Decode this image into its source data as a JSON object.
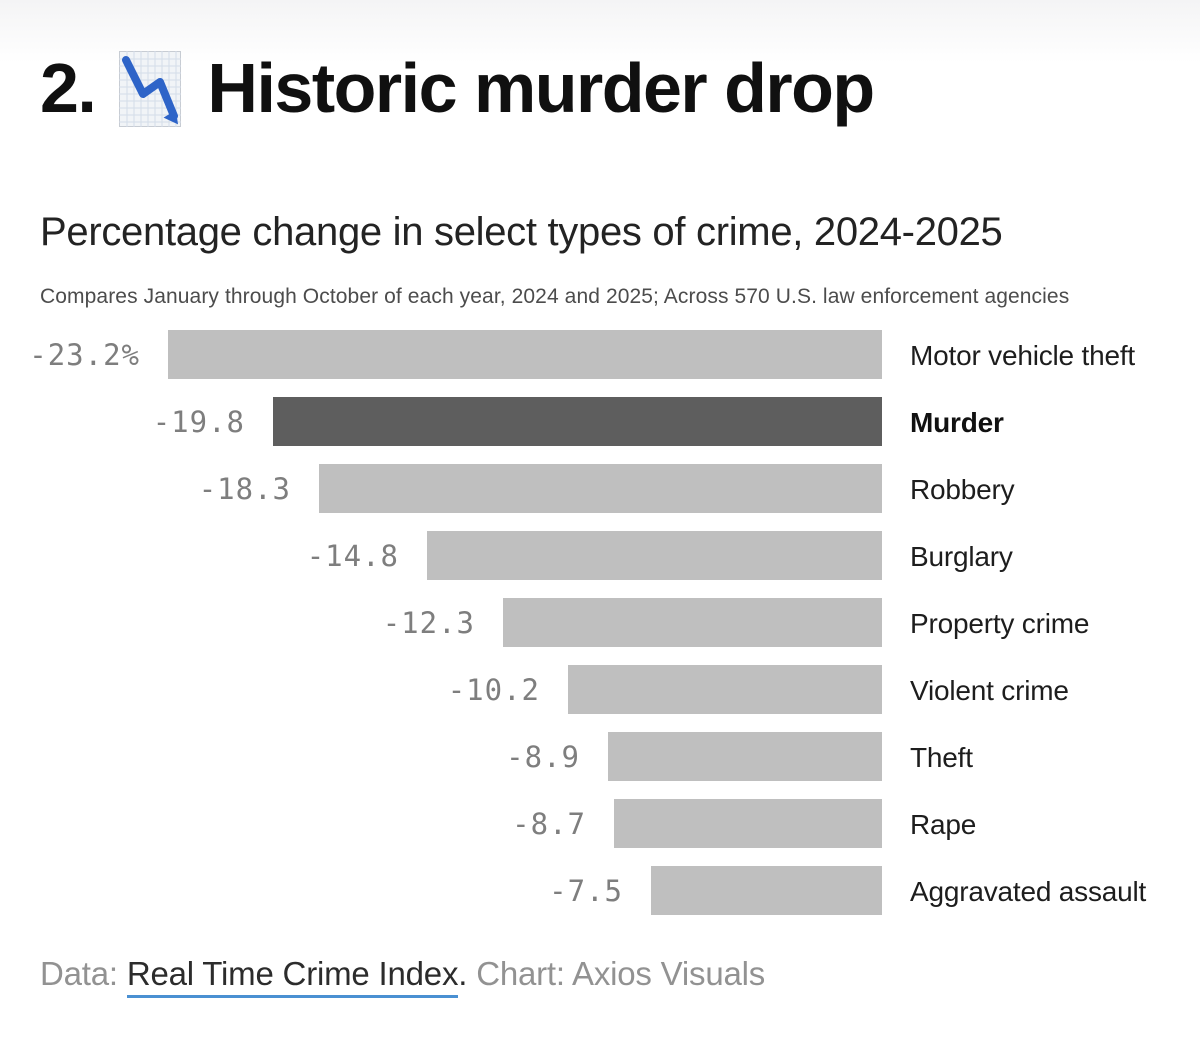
{
  "page": {
    "item_number": "2.",
    "title": "Historic murder drop",
    "emoji_name": "chart-decreasing-emoji",
    "subtitle": "Percentage change in select types of crime, 2024-2025",
    "caption": "Compares January through October of each year, 2024 and 2025; Across 570 U.S. law enforcement agencies"
  },
  "chart_data": {
    "type": "bar",
    "orientation": "horizontal",
    "title": "Percentage change in select types of crime, 2024-2025",
    "subtitle": "Compares January through October of each year, 2024 and 2025; Across 570 U.S. law enforcement agencies",
    "unit": "percent",
    "xlim": [
      -23.2,
      0
    ],
    "grid": false,
    "legend": false,
    "categories": [
      "Motor vehicle theft",
      "Murder",
      "Robbery",
      "Burglary",
      "Property crime",
      "Violent crime",
      "Theft",
      "Rape",
      "Aggravated assault"
    ],
    "values": [
      -23.2,
      -19.8,
      -18.3,
      -14.8,
      -12.3,
      -10.2,
      -8.9,
      -8.7,
      -7.5
    ],
    "value_labels": [
      "-23.2%",
      "-19.8",
      "-18.3",
      "-14.8",
      "-12.3",
      "-10.2",
      "-8.9",
      "-8.7",
      "-7.5"
    ],
    "highlighted_category": "Murder",
    "colors": {
      "bar": "#bfbfbf",
      "highlight_bar": "#5e5e5e",
      "value_label": "#7e7e7e",
      "category_label": "#1d1d1d"
    }
  },
  "footer": {
    "data_prefix": "Data: ",
    "source_link": "Real Time Crime Index",
    "separator": ".",
    "credit": " Chart: Axios Visuals",
    "link_underline_color": "#4a90d2"
  }
}
